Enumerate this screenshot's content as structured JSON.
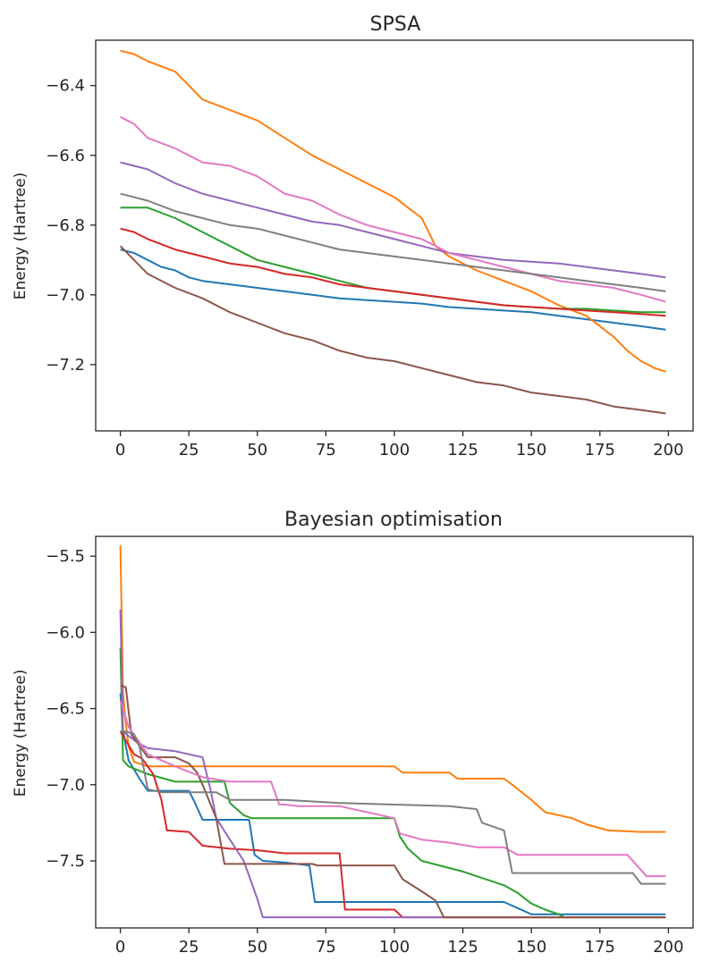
{
  "chart_data": [
    {
      "type": "line",
      "title": "SPSA",
      "xlabel": "",
      "ylabel": "Energy (Hartree)",
      "xlim": [
        -9,
        209
      ],
      "ylim": [
        -7.39,
        -6.27
      ],
      "xticks": [
        0,
        25,
        50,
        75,
        100,
        125,
        150,
        175,
        200
      ],
      "yticks": [
        -6.4,
        -6.6,
        -6.8,
        -7.0,
        -7.2
      ],
      "ytick_labels": [
        "−6.4",
        "−6.6",
        "−6.8",
        "−7.0",
        "−7.2"
      ],
      "grid": false,
      "legend": "none",
      "series": [
        {
          "color": "#1f77b4",
          "x": [
            0,
            5,
            10,
            15,
            20,
            25,
            30,
            40,
            50,
            60,
            70,
            80,
            90,
            100,
            110,
            120,
            130,
            140,
            150,
            160,
            170,
            180,
            190,
            199
          ],
          "y": [
            -6.87,
            -6.88,
            -6.9,
            -6.92,
            -6.93,
            -6.95,
            -6.96,
            -6.97,
            -6.98,
            -6.99,
            -7.0,
            -7.01,
            -7.015,
            -7.02,
            -7.025,
            -7.035,
            -7.04,
            -7.045,
            -7.05,
            -7.06,
            -7.07,
            -7.08,
            -7.09,
            -7.1
          ]
        },
        {
          "color": "#ff7f0e",
          "x": [
            0,
            5,
            10,
            20,
            25,
            30,
            40,
            50,
            60,
            70,
            80,
            90,
            100,
            110,
            115,
            120,
            125,
            130,
            140,
            150,
            160,
            170,
            175,
            180,
            185,
            190,
            195,
            199
          ],
          "y": [
            -6.3,
            -6.31,
            -6.33,
            -6.36,
            -6.4,
            -6.44,
            -6.47,
            -6.5,
            -6.55,
            -6.6,
            -6.64,
            -6.68,
            -6.72,
            -6.78,
            -6.86,
            -6.89,
            -6.91,
            -6.93,
            -6.96,
            -6.99,
            -7.03,
            -7.06,
            -7.09,
            -7.12,
            -7.16,
            -7.19,
            -7.21,
            -7.22
          ]
        },
        {
          "color": "#2ca02c",
          "x": [
            0,
            10,
            20,
            30,
            40,
            50,
            60,
            70,
            80,
            90,
            100,
            110,
            120,
            130,
            140,
            150,
            160,
            170,
            180,
            190,
            199
          ],
          "y": [
            -6.75,
            -6.75,
            -6.78,
            -6.82,
            -6.86,
            -6.9,
            -6.92,
            -6.94,
            -6.96,
            -6.98,
            -6.99,
            -7.0,
            -7.01,
            -7.02,
            -7.03,
            -7.035,
            -7.04,
            -7.04,
            -7.045,
            -7.05,
            -7.05
          ]
        },
        {
          "color": "#d62728",
          "x": [
            0,
            5,
            10,
            20,
            30,
            40,
            50,
            60,
            70,
            80,
            90,
            100,
            110,
            120,
            130,
            140,
            150,
            160,
            170,
            180,
            190,
            199
          ],
          "y": [
            -6.81,
            -6.82,
            -6.84,
            -6.87,
            -6.89,
            -6.91,
            -6.92,
            -6.94,
            -6.95,
            -6.97,
            -6.98,
            -6.99,
            -7.0,
            -7.01,
            -7.02,
            -7.03,
            -7.035,
            -7.04,
            -7.045,
            -7.05,
            -7.055,
            -7.06
          ]
        },
        {
          "color": "#9467bd",
          "x": [
            0,
            10,
            20,
            30,
            40,
            50,
            60,
            70,
            80,
            90,
            100,
            110,
            120,
            130,
            140,
            150,
            160,
            170,
            180,
            190,
            199
          ],
          "y": [
            -6.62,
            -6.64,
            -6.68,
            -6.71,
            -6.73,
            -6.75,
            -6.77,
            -6.79,
            -6.8,
            -6.82,
            -6.84,
            -6.86,
            -6.88,
            -6.89,
            -6.9,
            -6.905,
            -6.91,
            -6.92,
            -6.93,
            -6.94,
            -6.95
          ]
        },
        {
          "color": "#8c564b",
          "x": [
            0,
            5,
            10,
            20,
            30,
            40,
            50,
            60,
            70,
            80,
            90,
            100,
            110,
            120,
            130,
            140,
            150,
            160,
            170,
            180,
            190,
            199
          ],
          "y": [
            -6.86,
            -6.9,
            -6.94,
            -6.98,
            -7.01,
            -7.05,
            -7.08,
            -7.11,
            -7.13,
            -7.16,
            -7.18,
            -7.19,
            -7.21,
            -7.23,
            -7.25,
            -7.26,
            -7.28,
            -7.29,
            -7.3,
            -7.32,
            -7.33,
            -7.34
          ]
        },
        {
          "color": "#e377c2",
          "x": [
            0,
            5,
            10,
            20,
            30,
            40,
            50,
            60,
            70,
            80,
            90,
            100,
            110,
            120,
            130,
            140,
            150,
            160,
            170,
            180,
            190,
            199
          ],
          "y": [
            -6.49,
            -6.51,
            -6.55,
            -6.58,
            -6.62,
            -6.63,
            -6.66,
            -6.71,
            -6.73,
            -6.77,
            -6.8,
            -6.82,
            -6.84,
            -6.88,
            -6.9,
            -6.92,
            -6.94,
            -6.96,
            -6.97,
            -6.98,
            -7.0,
            -7.02
          ]
        },
        {
          "color": "#7f7f7f",
          "x": [
            0,
            10,
            20,
            30,
            40,
            50,
            60,
            70,
            80,
            90,
            100,
            110,
            120,
            130,
            140,
            150,
            160,
            170,
            180,
            190,
            199
          ],
          "y": [
            -6.71,
            -6.73,
            -6.76,
            -6.78,
            -6.8,
            -6.81,
            -6.83,
            -6.85,
            -6.87,
            -6.88,
            -6.89,
            -6.9,
            -6.91,
            -6.92,
            -6.93,
            -6.94,
            -6.95,
            -6.96,
            -6.97,
            -6.98,
            -6.99
          ]
        }
      ]
    },
    {
      "type": "line",
      "title": "Bayesian optimisation",
      "xlabel": "",
      "ylabel": "Energy (Hartree)",
      "xlim": [
        -9,
        209
      ],
      "ylim": [
        -7.94,
        -5.37
      ],
      "xticks": [
        0,
        25,
        50,
        75,
        100,
        125,
        150,
        175,
        200
      ],
      "yticks": [
        -5.5,
        -6.0,
        -6.5,
        -7.0,
        -7.5
      ],
      "ytick_labels": [
        "−5.5",
        "−6.0",
        "−6.5",
        "−7.0",
        "−7.5"
      ],
      "grid": false,
      "legend": "none",
      "series": [
        {
          "color": "#1f77b4",
          "x": [
            0,
            1,
            3,
            5,
            7,
            10,
            20,
            25,
            27,
            30,
            40,
            47,
            49,
            52,
            60,
            69,
            71,
            80,
            100,
            140,
            150,
            155,
            199
          ],
          "y": [
            -6.4,
            -6.65,
            -6.84,
            -6.9,
            -6.96,
            -7.04,
            -7.04,
            -7.04,
            -7.11,
            -7.23,
            -7.23,
            -7.23,
            -7.46,
            -7.5,
            -7.51,
            -7.53,
            -7.77,
            -7.77,
            -7.77,
            -7.77,
            -7.85,
            -7.85,
            -7.85
          ]
        },
        {
          "color": "#ff7f0e",
          "x": [
            0,
            1,
            2,
            3,
            5,
            10,
            30,
            100,
            103,
            120,
            123,
            140,
            143,
            150,
            155,
            165,
            170,
            178,
            190,
            199
          ],
          "y": [
            -5.43,
            -6.4,
            -6.6,
            -6.75,
            -6.85,
            -6.88,
            -6.88,
            -6.88,
            -6.92,
            -6.92,
            -6.96,
            -6.96,
            -7.0,
            -7.1,
            -7.18,
            -7.22,
            -7.26,
            -7.3,
            -7.31,
            -7.31
          ]
        },
        {
          "color": "#2ca02c",
          "x": [
            0,
            1,
            3,
            10,
            20,
            38,
            40,
            45,
            48,
            100,
            102,
            105,
            110,
            125,
            130,
            140,
            145,
            150,
            155,
            160,
            162,
            199
          ],
          "y": [
            -6.1,
            -6.84,
            -6.88,
            -6.93,
            -6.98,
            -6.98,
            -7.12,
            -7.2,
            -7.22,
            -7.22,
            -7.34,
            -7.42,
            -7.5,
            -7.57,
            -7.6,
            -7.66,
            -7.71,
            -7.78,
            -7.82,
            -7.85,
            -7.87,
            -7.87
          ]
        },
        {
          "color": "#d62728",
          "x": [
            0,
            5,
            8,
            12,
            15,
            17,
            25,
            30,
            40,
            50,
            60,
            70,
            80,
            82,
            100,
            103,
            199
          ],
          "y": [
            -6.65,
            -6.8,
            -6.83,
            -6.93,
            -7.1,
            -7.3,
            -7.31,
            -7.4,
            -7.42,
            -7.43,
            -7.45,
            -7.45,
            -7.45,
            -7.82,
            -7.82,
            -7.87,
            -7.87
          ]
        },
        {
          "color": "#9467bd",
          "x": [
            0,
            1,
            3,
            6,
            10,
            20,
            30,
            33,
            35,
            40,
            45,
            50,
            52,
            55,
            199
          ],
          "y": [
            -5.85,
            -6.65,
            -6.68,
            -6.72,
            -6.76,
            -6.78,
            -6.82,
            -7.04,
            -7.22,
            -7.36,
            -7.5,
            -7.75,
            -7.87,
            -7.87,
            -7.87
          ]
        },
        {
          "color": "#8c564b",
          "x": [
            0,
            2,
            4,
            10,
            20,
            25,
            28,
            30,
            35,
            38,
            40,
            70,
            72,
            100,
            103,
            110,
            115,
            118,
            199
          ],
          "y": [
            -6.35,
            -6.36,
            -6.67,
            -6.82,
            -6.82,
            -6.86,
            -6.92,
            -7.0,
            -7.22,
            -7.52,
            -7.52,
            -7.52,
            -7.53,
            -7.53,
            -7.62,
            -7.7,
            -7.76,
            -7.87,
            -7.87
          ]
        },
        {
          "color": "#e377c2",
          "x": [
            0,
            3,
            10,
            20,
            30,
            40,
            50,
            55,
            58,
            60,
            65,
            80,
            100,
            102,
            110,
            120,
            130,
            140,
            145,
            150,
            155,
            185,
            188,
            192,
            199
          ],
          "y": [
            -6.45,
            -6.62,
            -6.8,
            -6.88,
            -6.95,
            -6.98,
            -6.98,
            -6.98,
            -7.13,
            -7.13,
            -7.14,
            -7.14,
            -7.22,
            -7.32,
            -7.36,
            -7.38,
            -7.41,
            -7.41,
            -7.46,
            -7.46,
            -7.46,
            -7.46,
            -7.52,
            -7.6,
            -7.6
          ]
        },
        {
          "color": "#7f7f7f",
          "x": [
            0,
            2,
            5,
            7,
            10,
            15,
            30,
            35,
            40,
            60,
            80,
            100,
            120,
            130,
            132,
            140,
            143,
            150,
            160,
            170,
            187,
            190,
            199
          ],
          "y": [
            -6.65,
            -6.65,
            -6.67,
            -6.75,
            -7.03,
            -7.05,
            -7.05,
            -7.05,
            -7.1,
            -7.1,
            -7.12,
            -7.13,
            -7.14,
            -7.16,
            -7.25,
            -7.3,
            -7.58,
            -7.58,
            -7.58,
            -7.58,
            -7.58,
            -7.65,
            -7.65
          ]
        }
      ]
    }
  ]
}
